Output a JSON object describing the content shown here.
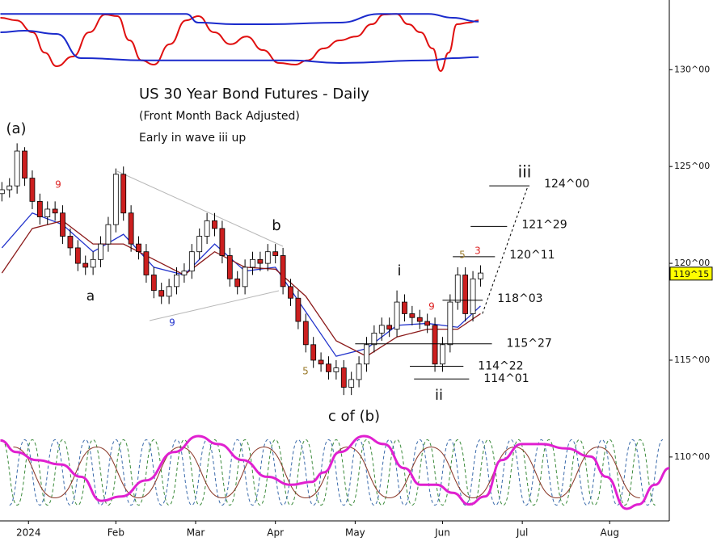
{
  "chart_data": {
    "type": "candlestick",
    "title": "US 30 Year Bond Futures - Daily",
    "subtitle": "(Front Month Back Adjusted)",
    "note": "Early in wave iii up",
    "xlim": [
      -7.5,
      168.7
    ],
    "xticks": [
      {
        "value": 0,
        "label": "2024"
      },
      {
        "value": 23,
        "label": "Feb"
      },
      {
        "value": 44,
        "label": "Mar"
      },
      {
        "value": 65,
        "label": "Apr"
      },
      {
        "value": 86,
        "label": "May"
      },
      {
        "value": 109,
        "label": "Jun"
      },
      {
        "value": 130,
        "label": "Jul"
      },
      {
        "value": 153,
        "label": "Aug"
      }
    ],
    "ylim": [
      106.7,
      133.6
    ],
    "yticks": [
      {
        "value": 110,
        "label": "110^00"
      },
      {
        "value": 115,
        "label": "115^00"
      },
      {
        "value": 120,
        "label": "120^00"
      },
      {
        "value": 125,
        "label": "125^00"
      },
      {
        "value": 130,
        "label": "130^00"
      }
    ],
    "up_color": "#ffffff",
    "down_color": "#cc1f1f",
    "x": [
      -7,
      -5,
      -3,
      -1,
      1,
      3,
      5,
      7,
      9,
      11,
      13,
      15,
      17,
      19,
      21,
      23,
      25,
      27,
      29,
      31,
      33,
      35,
      37,
      39,
      41,
      43,
      45,
      47,
      49,
      51,
      53,
      55,
      57,
      59,
      61,
      63,
      65,
      67,
      69,
      71,
      73,
      75,
      77,
      79,
      81,
      83,
      85,
      87,
      89,
      91,
      93,
      95,
      97,
      99,
      101,
      103,
      105,
      107,
      109,
      111,
      113,
      115,
      117,
      119
    ],
    "open": [
      123.6,
      123.8,
      124.0,
      125.8,
      124.4,
      123.2,
      122.4,
      122.8,
      122.6,
      121.4,
      120.8,
      120.0,
      119.8,
      120.2,
      121.0,
      122.0,
      124.6,
      122.6,
      121.0,
      120.6,
      119.4,
      118.6,
      118.3,
      118.8,
      119.4,
      119.6,
      120.6,
      121.4,
      122.2,
      121.8,
      120.4,
      119.2,
      118.8,
      119.8,
      120.2,
      120.0,
      120.6,
      120.4,
      118.8,
      118.2,
      117.0,
      115.8,
      115.0,
      114.8,
      114.4,
      114.6,
      113.6,
      114.0,
      114.8,
      115.8,
      116.4,
      116.8,
      116.6,
      118.0,
      117.4,
      117.2,
      117.0,
      116.8,
      114.8,
      115.8,
      118.0,
      119.4,
      117.4,
      119.2
    ],
    "high": [
      124.2,
      124.4,
      126.2,
      126.0,
      124.8,
      123.6,
      123.2,
      123.2,
      123.0,
      121.8,
      121.2,
      120.4,
      120.6,
      121.4,
      122.4,
      124.9,
      125.0,
      123.0,
      121.4,
      121.0,
      119.8,
      119.0,
      119.2,
      119.8,
      120.0,
      121.0,
      121.8,
      122.6,
      122.6,
      122.2,
      120.8,
      119.6,
      120.2,
      120.6,
      120.6,
      121.0,
      121.0,
      120.8,
      119.2,
      118.6,
      117.4,
      116.2,
      115.4,
      115.2,
      115.0,
      115.0,
      114.4,
      115.2,
      116.2,
      116.8,
      117.2,
      117.2,
      118.6,
      118.4,
      117.8,
      117.6,
      117.4,
      117.2,
      116.2,
      118.4,
      119.8,
      119.8,
      119.6,
      119.9
    ],
    "low": [
      123.2,
      123.4,
      123.6,
      124.0,
      122.8,
      122.0,
      122.0,
      122.2,
      121.0,
      120.4,
      119.6,
      119.4,
      119.4,
      119.8,
      120.6,
      121.6,
      122.2,
      120.6,
      120.2,
      119.0,
      118.2,
      117.9,
      117.9,
      118.4,
      119.0,
      119.2,
      120.2,
      121.0,
      121.4,
      120.0,
      118.8,
      118.4,
      118.4,
      119.4,
      119.6,
      119.6,
      120.0,
      118.4,
      117.8,
      116.6,
      115.4,
      114.6,
      114.4,
      114.0,
      114.0,
      113.2,
      113.2,
      113.6,
      114.4,
      115.4,
      116.0,
      116.2,
      116.2,
      117.0,
      116.8,
      116.6,
      116.4,
      114.4,
      114.4,
      115.4,
      117.6,
      117.0,
      117.0,
      118.8
    ],
    "close": [
      123.8,
      124.0,
      125.8,
      124.4,
      123.2,
      122.4,
      122.8,
      122.6,
      121.4,
      120.8,
      120.0,
      119.8,
      120.2,
      121.0,
      122.0,
      124.6,
      122.6,
      121.0,
      120.6,
      119.4,
      118.6,
      118.3,
      118.8,
      119.4,
      119.6,
      120.6,
      121.4,
      122.2,
      121.8,
      120.4,
      119.2,
      118.8,
      119.8,
      120.2,
      120.0,
      120.6,
      120.4,
      118.8,
      118.2,
      117.0,
      115.8,
      115.0,
      114.8,
      114.4,
      114.6,
      113.6,
      114.0,
      114.8,
      115.8,
      116.4,
      116.8,
      116.6,
      118.0,
      117.4,
      117.2,
      117.0,
      116.8,
      114.8,
      115.8,
      118.0,
      119.4,
      117.4,
      119.2,
      119.5
    ],
    "moving_averages": [
      {
        "color": "#2233cc",
        "x": [
          -7,
          1,
          9,
          17,
          25,
          33,
          41,
          49,
          57,
          65,
          73,
          81,
          89,
          97,
          105,
          113,
          119
        ],
        "values": [
          120.8,
          122.6,
          122.0,
          120.6,
          121.5,
          119.8,
          119.4,
          121.0,
          119.6,
          119.8,
          117.5,
          115.2,
          115.6,
          116.8,
          116.9,
          116.7,
          117.8
        ]
      },
      {
        "color": "#8b1a1a",
        "x": [
          -7,
          1,
          9,
          17,
          25,
          33,
          41,
          49,
          57,
          65,
          73,
          81,
          89,
          97,
          105,
          113,
          119
        ],
        "values": [
          119.5,
          121.8,
          122.2,
          121.0,
          121.0,
          120.2,
          119.4,
          120.6,
          119.8,
          119.7,
          118.3,
          116.0,
          115.2,
          116.2,
          116.6,
          116.6,
          117.4
        ]
      }
    ],
    "levels": [
      {
        "value": 124.0,
        "label": "124^00",
        "x": [
          121.3,
          131.9
        ]
      },
      {
        "value": 121.906,
        "label": "121^29",
        "x": [
          116.4,
          126.0
        ]
      },
      {
        "value": 120.344,
        "label": "120^11",
        "x": [
          111.7,
          122.8
        ]
      },
      {
        "value": 118.094,
        "label": "118^03",
        "x": [
          109.0,
          119.6
        ]
      },
      {
        "value": 115.844,
        "label": "115^27",
        "x": [
          86.0,
          122.0
        ]
      },
      {
        "value": 114.688,
        "label": "114^22",
        "x": [
          100.4,
          114.5
        ]
      },
      {
        "value": 114.031,
        "label": "114^01",
        "x": [
          101.5,
          116.0
        ]
      }
    ],
    "projection": {
      "x": [
        119.5,
        131.5
      ],
      "values": [
        117.4,
        124.0
      ]
    },
    "last_price": {
      "value": 119.469,
      "label": "119^15"
    },
    "annotations": [
      {
        "text": "(a)",
        "color": "#111111"
      },
      {
        "text": "a",
        "color": "#111111"
      },
      {
        "text": "b",
        "color": "#111111"
      },
      {
        "text": "c of (b)",
        "color": "#111111"
      },
      {
        "text": "i",
        "color": "#111111"
      },
      {
        "text": "ii",
        "color": "#111111"
      },
      {
        "text": "iii",
        "color": "#111111"
      },
      {
        "text": "9",
        "color": "#dd2222"
      },
      {
        "text": "9",
        "color": "#2233cc"
      },
      {
        "text": "5",
        "color": "#9a7a2a"
      },
      {
        "text": "9",
        "color": "#dd2222"
      },
      {
        "text": "5",
        "color": "#9a7a2a"
      },
      {
        "text": "3",
        "color": "#dd2222"
      }
    ],
    "top_panel": {
      "ylim": [
        0,
        100
      ],
      "series": [
        {
          "color": "#e01010",
          "width": 2,
          "x": [
            -7.4,
            -3.2,
            1.1,
            4.3,
            7.4,
            11.7,
            16,
            20.2,
            23.4,
            26.6,
            29.8,
            33,
            37.2,
            41.5,
            44.7,
            48.9,
            53.2,
            57.4,
            61.7,
            66,
            70.2,
            73.4,
            77.7,
            81.9,
            86.2,
            90.4,
            93.6,
            96.8,
            100,
            103.2,
            106.4,
            108.5,
            110.6,
            112.8,
            116,
            118.5
          ],
          "values": [
            85,
            81,
            62.5,
            31,
            10,
            25,
            62.5,
            90,
            87.5,
            50,
            19,
            12.5,
            44,
            81,
            87.5,
            62.5,
            44,
            56,
            35,
            15,
            12.5,
            19,
            37.5,
            50,
            56,
            75,
            90,
            91,
            75,
            62.5,
            37.5,
            2.5,
            31,
            75,
            77.5,
            81
          ]
        },
        {
          "color": "#1a2acc",
          "width": 2,
          "x": [
            -7.4,
            41.5,
            44.7,
            54.3,
            62.8,
            81.9,
            92.6,
            105.3,
            111.7,
            118.5
          ],
          "values": [
            91,
            91,
            77.5,
            75,
            75,
            77.5,
            91,
            91,
            85,
            79
          ]
        },
        {
          "color": "#1a2acc",
          "width": 2,
          "x": [
            -7.4,
            -1.1,
            7.4,
            13.8,
            30.9,
            69.1,
            81.9,
            105.3,
            111.7,
            118.5
          ],
          "values": [
            62.5,
            65,
            60,
            22.5,
            19,
            19,
            15,
            19,
            22.5,
            24
          ]
        }
      ]
    },
    "bottom_panel": {
      "ylim": [
        0,
        100
      ],
      "series": [
        {
          "color": "#3a8a3a",
          "width": 1,
          "dash": true,
          "x": [
            -7,
            -3,
            1,
            5,
            9,
            13,
            17,
            21,
            25,
            29,
            33,
            37,
            41,
            45,
            49,
            53,
            57,
            61,
            65,
            69,
            73,
            77,
            81,
            85,
            89,
            93,
            97,
            101,
            105,
            109,
            113,
            117,
            121,
            125,
            129,
            133,
            137,
            141,
            145,
            149,
            153,
            157,
            161,
            165
          ],
          "values": [
            95,
            5,
            95,
            5,
            95,
            5,
            95,
            5,
            95,
            5,
            95,
            5,
            95,
            5,
            95,
            5,
            95,
            5,
            95,
            5,
            95,
            5,
            95,
            5,
            95,
            5,
            95,
            5,
            95,
            5,
            95,
            5,
            95,
            5,
            95,
            5,
            95,
            5,
            95,
            5,
            95,
            5,
            95,
            5
          ]
        },
        {
          "color": "#3a6aaa",
          "width": 1,
          "dash": true,
          "x": [
            -5,
            -1,
            3,
            7,
            11,
            15,
            19,
            23,
            27,
            31,
            35,
            39,
            43,
            47,
            51,
            55,
            59,
            63,
            67,
            71,
            75,
            79,
            83,
            87,
            91,
            95,
            99,
            103,
            107,
            111,
            115,
            119,
            123,
            127,
            131,
            135,
            139,
            143,
            147,
            151,
            155,
            159,
            163,
            167
          ],
          "values": [
            5,
            95,
            5,
            95,
            5,
            95,
            5,
            95,
            5,
            95,
            5,
            95,
            5,
            95,
            5,
            95,
            5,
            95,
            5,
            95,
            5,
            95,
            5,
            95,
            5,
            95,
            5,
            95,
            5,
            95,
            5,
            95,
            5,
            95,
            5,
            95,
            5,
            95,
            5,
            95,
            5,
            95,
            5,
            95
          ]
        },
        {
          "color": "#8b3a2a",
          "width": 1,
          "dash": false,
          "x": [
            -4,
            7,
            18,
            29,
            40,
            51,
            62,
            73,
            84,
            95,
            106,
            117,
            128,
            139,
            150,
            161
          ],
          "values": [
            85,
            15,
            85,
            15,
            85,
            15,
            85,
            15,
            85,
            15,
            85,
            15,
            85,
            15,
            85,
            15
          ]
        },
        {
          "color": "#e020d0",
          "width": 3,
          "dash": false,
          "x": [
            -7.4,
            -3.2,
            2.1,
            8.5,
            13.8,
            19.1,
            24.5,
            30.9,
            38.3,
            44.7,
            50,
            56.4,
            62.8,
            69.1,
            74.5,
            77.7,
            81.9,
            88.3,
            93.6,
            98.9,
            103.2,
            107.4,
            111.7,
            116,
            120.2,
            124.5,
            129.8,
            135.1,
            141.5,
            147.9,
            152.1,
            157.4,
            160.6,
            164.9,
            168.7
          ],
          "values": [
            94,
            78,
            67,
            61,
            44,
            11,
            17,
            39,
            78,
            100,
            89,
            67,
            44,
            33,
            37,
            50,
            78,
            100,
            89,
            56,
            33,
            33,
            22,
            6,
            17,
            67,
            89,
            89,
            83,
            72,
            44,
            0,
            6,
            33,
            56
          ]
        }
      ]
    }
  }
}
